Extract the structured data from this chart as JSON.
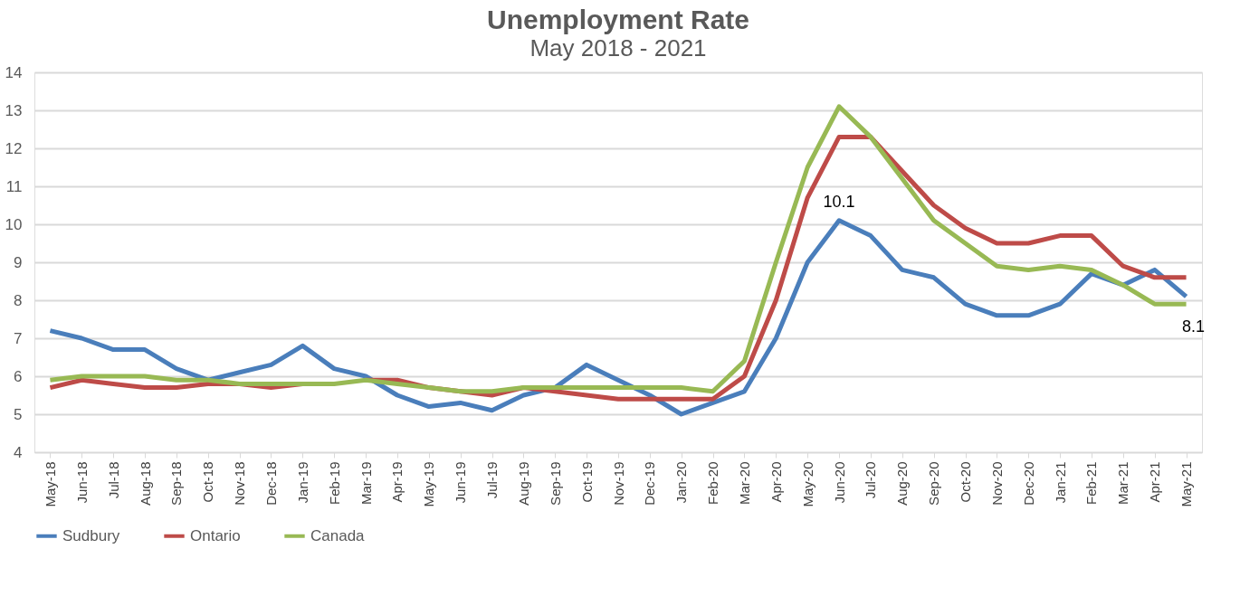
{
  "chart_data": {
    "type": "line",
    "title": "Unemployment Rate",
    "subtitle": "May 2018 -  2021",
    "categories": [
      "May-18",
      "Jun-18",
      "Jul-18",
      "Aug-18",
      "Sep-18",
      "Oct-18",
      "Nov-18",
      "Dec-18",
      "Jan-19",
      "Feb-19",
      "Mar-19",
      "Apr-19",
      "May-19",
      "Jun-19",
      "Jul-19",
      "Aug-19",
      "Sep-19",
      "Oct-19",
      "Nov-19",
      "Dec-19",
      "Jan-20",
      "Feb-20",
      "Mar-20",
      "Apr-20",
      "May-20",
      "Jun-20",
      "Jul-20",
      "Aug-20",
      "Sep-20",
      "Oct-20",
      "Nov-20",
      "Dec-20",
      "Jan-21",
      "Feb-21",
      "Mar-21",
      "Apr-21",
      "May-21"
    ],
    "series": [
      {
        "name": "Sudbury",
        "color": "#4a7ebb",
        "values": [
          7.2,
          7.0,
          6.7,
          6.7,
          6.2,
          5.9,
          6.1,
          6.3,
          6.8,
          6.2,
          6.0,
          5.5,
          5.2,
          5.3,
          5.1,
          5.5,
          5.7,
          6.3,
          5.9,
          5.5,
          5.0,
          5.3,
          5.6,
          7.0,
          9.0,
          10.1,
          9.7,
          8.8,
          8.6,
          7.9,
          7.6,
          7.6,
          7.9,
          8.7,
          8.4,
          8.8,
          8.1
        ],
        "value_labels": [
          null,
          null,
          null,
          null,
          null,
          null,
          null,
          null,
          null,
          null,
          null,
          null,
          null,
          null,
          null,
          null,
          null,
          null,
          null,
          null,
          null,
          null,
          null,
          null,
          null,
          "10.1",
          null,
          null,
          null,
          null,
          null,
          null,
          null,
          null,
          null,
          null,
          "8.1"
        ]
      },
      {
        "name": "Ontario",
        "color": "#be4b48",
        "values": [
          5.7,
          5.9,
          5.8,
          5.7,
          5.7,
          5.8,
          5.8,
          5.7,
          5.8,
          null,
          5.9,
          5.9,
          5.7,
          5.6,
          5.5,
          5.7,
          5.6,
          5.5,
          5.4,
          5.4,
          5.4,
          5.4,
          6.0,
          8.0,
          10.7,
          12.3,
          12.3,
          11.4,
          10.5,
          9.9,
          9.5,
          9.5,
          9.7,
          9.7,
          8.9,
          8.6,
          8.6
        ]
      },
      {
        "name": "Canada",
        "color": "#98b954",
        "values": [
          5.9,
          6.0,
          6.0,
          6.0,
          5.9,
          5.9,
          5.8,
          5.8,
          5.8,
          5.8,
          5.9,
          5.8,
          5.7,
          5.6,
          5.6,
          5.7,
          5.7,
          5.7,
          5.7,
          5.7,
          5.7,
          5.6,
          6.4,
          9.0,
          11.5,
          13.1,
          12.3,
          11.2,
          10.1,
          9.5,
          8.9,
          8.8,
          8.9,
          8.8,
          8.4,
          7.9,
          7.9
        ]
      }
    ],
    "ylim": [
      4,
      14
    ],
    "yticks": [
      4,
      5,
      6,
      7,
      8,
      9,
      10,
      11,
      12,
      13,
      14
    ],
    "grid": "y",
    "legend": "bottom",
    "marker": "none",
    "line_style": "solid"
  }
}
